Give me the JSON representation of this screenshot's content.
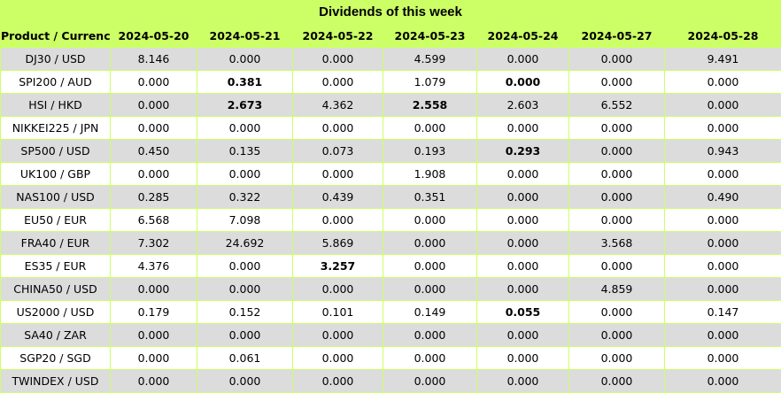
{
  "title": "Dividends of this week",
  "columns": [
    "Product / Currency",
    "2024-05-20",
    "2024-05-21",
    "2024-05-22",
    "2024-05-23",
    "2024-05-24",
    "2024-05-27",
    "2024-05-28"
  ],
  "rows": [
    {
      "product": "DJ30 / USD",
      "values": [
        "8.146",
        "0.000",
        "0.000",
        "4.599",
        "0.000",
        "0.000",
        "9.491"
      ],
      "bold": []
    },
    {
      "product": "SPI200 / AUD",
      "values": [
        "0.000",
        "0.381",
        "0.000",
        "1.079",
        "0.000",
        "0.000",
        "0.000"
      ],
      "bold": [
        1,
        4
      ]
    },
    {
      "product": "HSI / HKD",
      "values": [
        "0.000",
        "2.673",
        "4.362",
        "2.558",
        "2.603",
        "6.552",
        "0.000"
      ],
      "bold": [
        1,
        3
      ]
    },
    {
      "product": "NIKKEI225 / JPN",
      "values": [
        "0.000",
        "0.000",
        "0.000",
        "0.000",
        "0.000",
        "0.000",
        "0.000"
      ],
      "bold": []
    },
    {
      "product": "SP500 / USD",
      "values": [
        "0.450",
        "0.135",
        "0.073",
        "0.193",
        "0.293",
        "0.000",
        "0.943"
      ],
      "bold": [
        4
      ]
    },
    {
      "product": "UK100 / GBP",
      "values": [
        "0.000",
        "0.000",
        "0.000",
        "1.908",
        "0.000",
        "0.000",
        "0.000"
      ],
      "bold": []
    },
    {
      "product": "NAS100 / USD",
      "values": [
        "0.285",
        "0.322",
        "0.439",
        "0.351",
        "0.000",
        "0.000",
        "0.490"
      ],
      "bold": []
    },
    {
      "product": "EU50 / EUR",
      "values": [
        "6.568",
        "7.098",
        "0.000",
        "0.000",
        "0.000",
        "0.000",
        "0.000"
      ],
      "bold": []
    },
    {
      "product": "FRA40 / EUR",
      "values": [
        "7.302",
        "24.692",
        "5.869",
        "0.000",
        "0.000",
        "3.568",
        "0.000"
      ],
      "bold": []
    },
    {
      "product": "ES35 / EUR",
      "values": [
        "4.376",
        "0.000",
        "3.257",
        "0.000",
        "0.000",
        "0.000",
        "0.000"
      ],
      "bold": [
        2
      ]
    },
    {
      "product": "CHINA50 / USD",
      "values": [
        "0.000",
        "0.000",
        "0.000",
        "0.000",
        "0.000",
        "4.859",
        "0.000"
      ],
      "bold": []
    },
    {
      "product": "US2000 / USD",
      "values": [
        "0.179",
        "0.152",
        "0.101",
        "0.149",
        "0.055",
        "0.000",
        "0.147"
      ],
      "bold": [
        4
      ]
    },
    {
      "product": "SA40 / ZAR",
      "values": [
        "0.000",
        "0.000",
        "0.000",
        "0.000",
        "0.000",
        "0.000",
        "0.000"
      ],
      "bold": []
    },
    {
      "product": "SGP20 / SGD",
      "values": [
        "0.000",
        "0.061",
        "0.000",
        "0.000",
        "0.000",
        "0.000",
        "0.000"
      ],
      "bold": []
    },
    {
      "product": "TWINDEX / USD",
      "values": [
        "0.000",
        "0.000",
        "0.000",
        "0.000",
        "0.000",
        "0.000",
        "0.000"
      ],
      "bold": []
    }
  ],
  "colors": {
    "header_bg": "#ccff66",
    "odd_row_bg": "#dcdcdc",
    "even_row_bg": "#ffffff"
  }
}
